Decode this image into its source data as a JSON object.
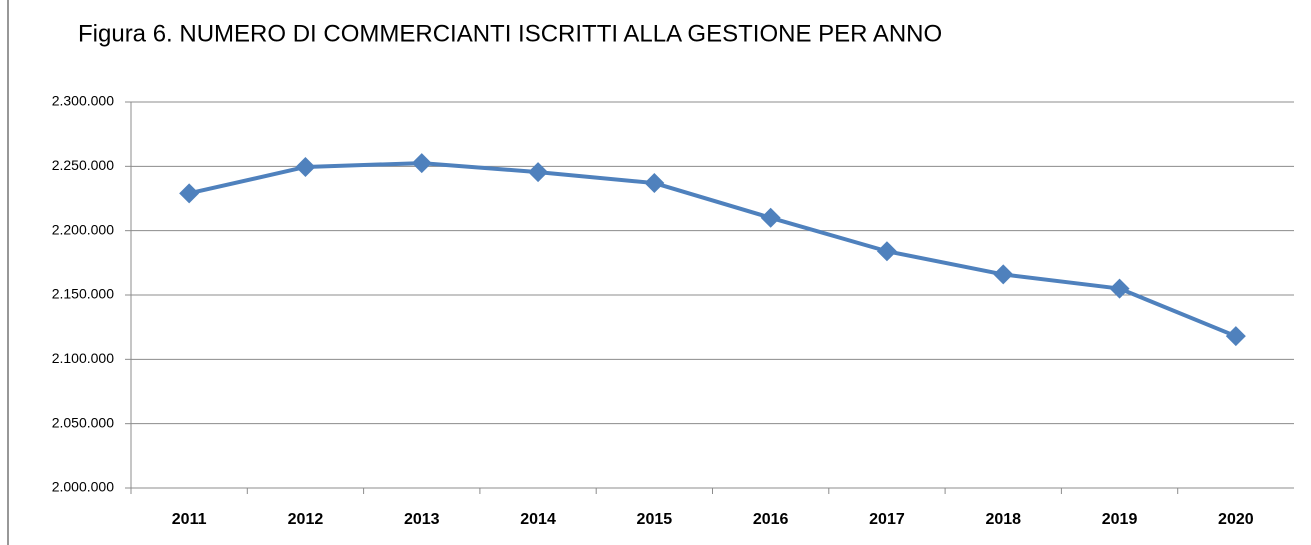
{
  "chart_data": {
    "type": "line",
    "title": "Figura 6. NUMERO DI COMMERCIANTI ISCRITTI ALLA GESTIONE PER ANNO",
    "categories": [
      "2011",
      "2012",
      "2013",
      "2014",
      "2015",
      "2016",
      "2017",
      "2018",
      "2019",
      "2020"
    ],
    "series": [
      {
        "name": "Commercianti",
        "color": "#4f81bd",
        "values": [
          2229000,
          2249500,
          2252500,
          2245500,
          2237000,
          2210000,
          2184000,
          2166000,
          2155000,
          2118000
        ]
      }
    ],
    "ylim": [
      2000000,
      2300000
    ],
    "yticks": [
      {
        "value": 2000000,
        "label": "2.000.000"
      },
      {
        "value": 2050000,
        "label": "2.050.000"
      },
      {
        "value": 2100000,
        "label": "2.100.000"
      },
      {
        "value": 2150000,
        "label": "2.150.000"
      },
      {
        "value": 2200000,
        "label": "2.200.000"
      },
      {
        "value": 2250000,
        "label": "2.250.000"
      },
      {
        "value": 2300000,
        "label": "2.300.000"
      }
    ],
    "grid": true
  }
}
